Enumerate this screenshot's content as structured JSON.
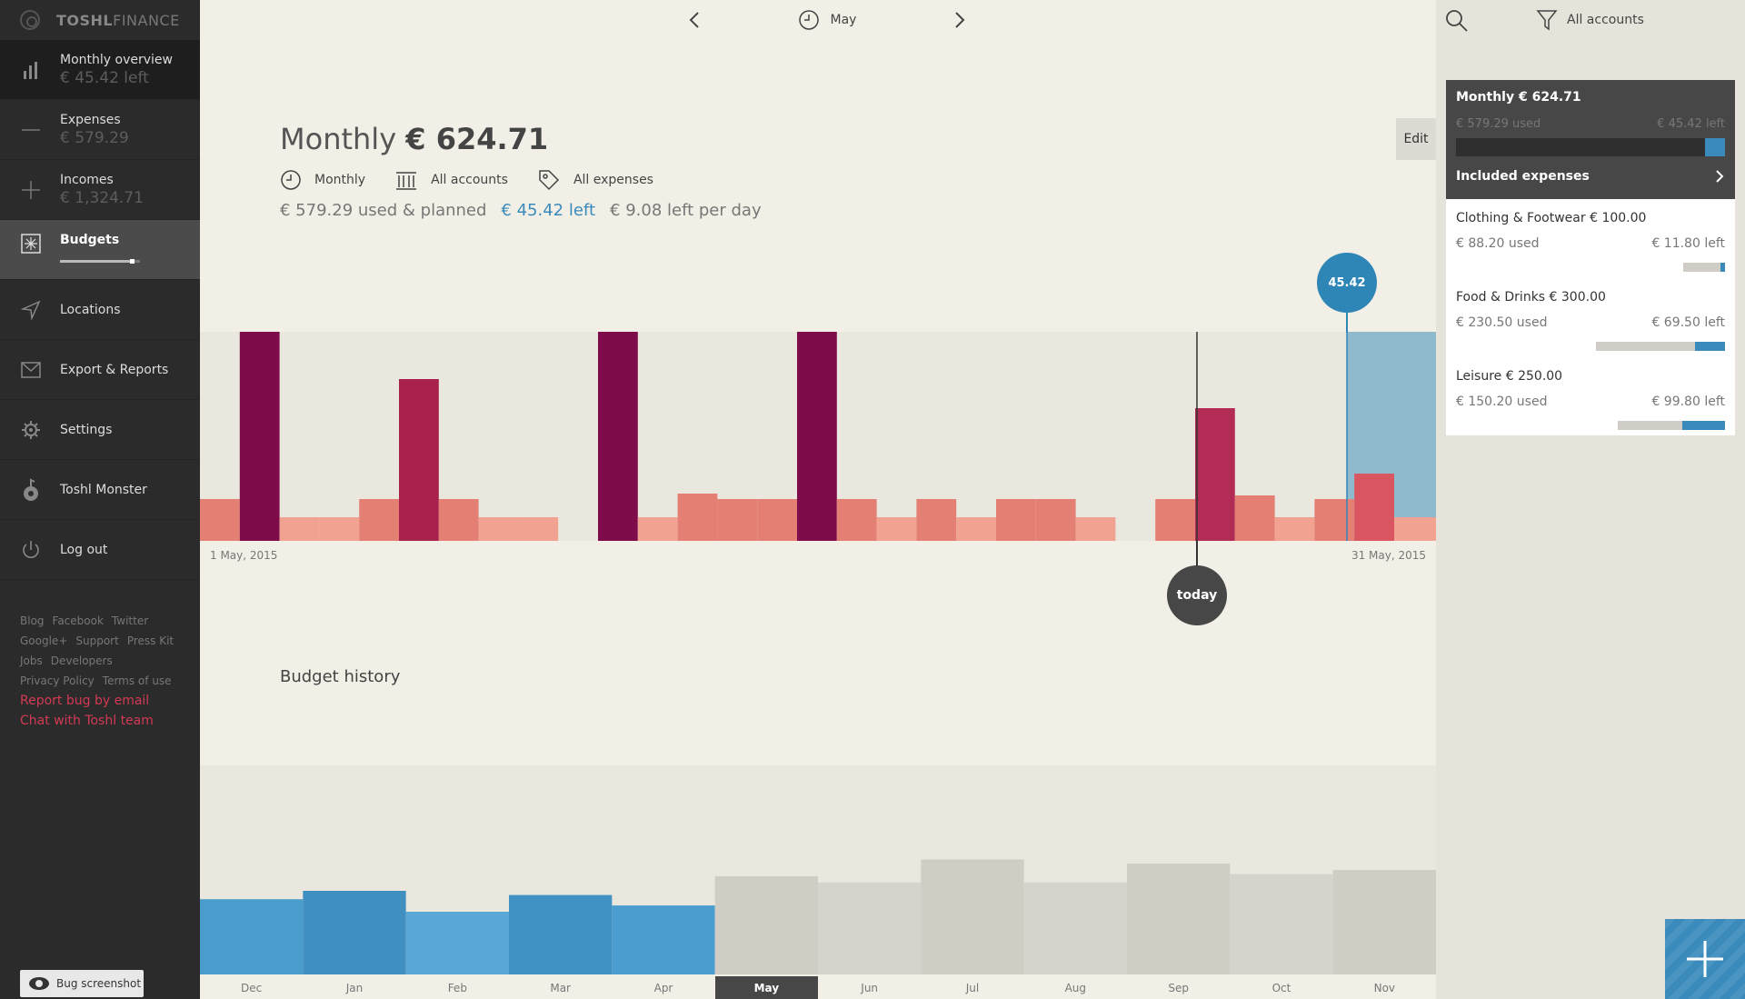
{
  "brand": {
    "name_bold": "TOSHL",
    "name_light": "FINANCE"
  },
  "nav": [
    {
      "label": "Monthly overview",
      "sub": "€ 45.42 left",
      "icon": "bar-chart-icon"
    },
    {
      "label": "Expenses",
      "sub": "€ 579.29",
      "icon": "minus-icon"
    },
    {
      "label": "Incomes",
      "sub": "€ 1,324.71",
      "icon": "plus-icon"
    },
    {
      "label": "Budgets",
      "sub": "",
      "icon": "budget-icon",
      "progress": 0.87
    },
    {
      "label": "Locations",
      "sub": "",
      "icon": "location-arrow-icon"
    },
    {
      "label": "Export & Reports",
      "sub": "",
      "icon": "envelope-icon"
    },
    {
      "label": "Settings",
      "sub": "",
      "icon": "gear-icon"
    },
    {
      "label": "Toshl Monster",
      "sub": "",
      "icon": "monster-icon"
    },
    {
      "label": "Log out",
      "sub": "",
      "icon": "power-icon"
    }
  ],
  "footer": {
    "links": [
      "Blog",
      "Facebook",
      "Twitter",
      "Google+",
      "Support",
      "Press Kit",
      "Jobs",
      "Developers",
      "Privacy Policy",
      "Terms of use"
    ],
    "report_bug": "Report bug by email",
    "chat": "Chat with Toshl team",
    "bug_screenshot": "Bug screenshot"
  },
  "header": {
    "month": "May"
  },
  "budget": {
    "period_label": "Monthly",
    "amount": "€ 624.71",
    "edit": "Edit",
    "filter_period": "Monthly",
    "filter_accounts": "All accounts",
    "filter_expenses": "All expenses",
    "used_planned": "€ 579.29 used & planned",
    "left": "€ 45.42 left",
    "per_day": "€ 9.08 left per day",
    "start_date": "1 May, 2015",
    "end_date": "31 May, 2015",
    "today_label": "today",
    "left_value": "45.42"
  },
  "history": {
    "title": "Budget history",
    "months": [
      "Dec",
      "Jan",
      "Feb",
      "Mar",
      "Apr",
      "May",
      "Jun",
      "Jul",
      "Aug",
      "Sep",
      "Oct",
      "Nov"
    ],
    "selected": "May"
  },
  "panel": {
    "accounts": "All accounts",
    "card_title": "Monthly € 624.71",
    "used": "€ 579.29 used",
    "left": "€ 45.42 left",
    "used_fraction": 0.927,
    "included": "Included expenses",
    "categories": [
      {
        "name": "Clothing & Footwear € 100.00",
        "used": "€ 88.20 used",
        "left": "€ 11.80 left",
        "used_fraction": 0.882
      },
      {
        "name": "Food & Drinks € 300.00",
        "used": "€ 230.50 used",
        "left": "€ 69.50 left",
        "used_fraction": 0.768
      },
      {
        "name": "Leisure € 250.00",
        "used": "€ 150.20 used",
        "left": "€ 99.80 left",
        "used_fraction": 0.601
      }
    ]
  },
  "colors": {
    "accent": "#3a8bbb",
    "dark_bar": "#7e0c4b",
    "mid_bar": "#a8214c",
    "light_bar": "#e47f74",
    "pale_bar": "#f1a290"
  },
  "chart_data": [
    {
      "type": "bar",
      "title": "",
      "x_range": [
        "1 May, 2015",
        "31 May, 2015"
      ],
      "day_levels": [
        "m",
        "d",
        "l",
        "l",
        "m",
        "c",
        "m",
        "l",
        "l",
        "n",
        "d",
        "l",
        "m",
        "m",
        "m",
        "d",
        "m",
        "l",
        "m",
        "l",
        "m",
        "m",
        "l",
        "n",
        "m",
        "c",
        "m",
        "l",
        "m",
        "r",
        "l"
      ],
      "legend_note": "",
      "remaining_marker": 45.42
    },
    {
      "type": "bar",
      "title": "Budget history",
      "categories": [
        "Dec",
        "Jan",
        "Feb",
        "Mar",
        "Apr",
        "May",
        "Jun",
        "Jul",
        "Aug",
        "Sep",
        "Oct",
        "Nov"
      ],
      "values": [
        0.36,
        0.4,
        0.3,
        0.38,
        0.33,
        0.47,
        0.44,
        0.55,
        0.44,
        0.53,
        0.48,
        0.5
      ],
      "past": [
        true,
        true,
        true,
        true,
        true,
        false,
        false,
        false,
        false,
        false,
        false,
        false
      ]
    }
  ]
}
